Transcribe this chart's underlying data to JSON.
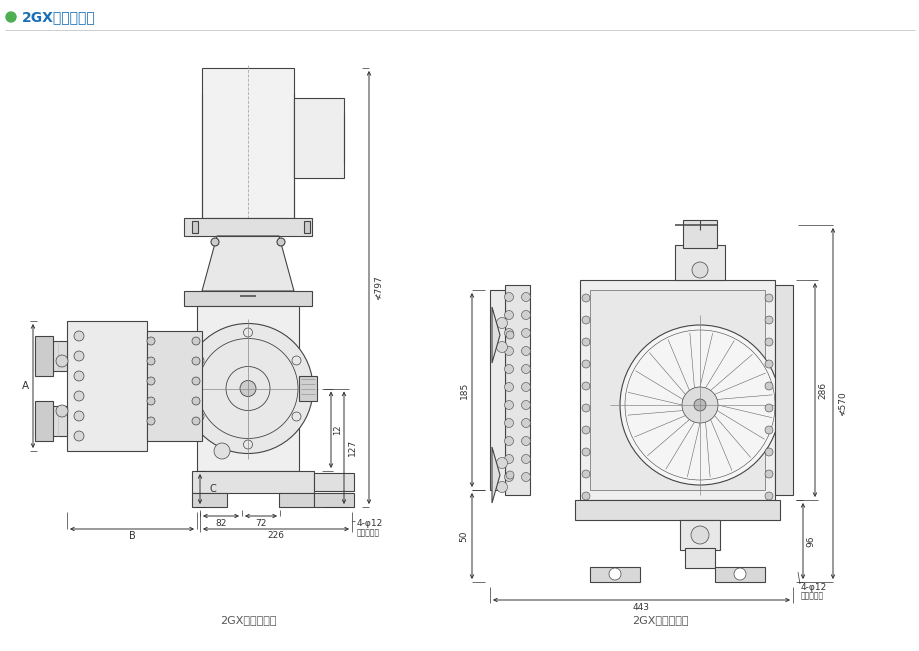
{
  "title": "2GX系列尺寸图",
  "title_color": "#1a6eb5",
  "title_dot_color": "#4caf50",
  "bg_color": "#ffffff",
  "line_color": "#444444",
  "dim_color": "#333333",
  "side_view_label": "2GX系列侧视图",
  "front_view_label": "2GX系列俯视图",
  "dim_797": "≮797",
  "dim_127": "127",
  "dim_12": "12",
  "dim_82": "82",
  "dim_72": "72",
  "dim_226": "226",
  "dim_A": "A",
  "dim_B": "B",
  "dim_C": "C",
  "dim_bolt1": "4-φ12",
  "dim_bolt1_note": "地脚螺栓孔",
  "dim_185": "185",
  "dim_50": "50",
  "dim_443": "443",
  "dim_286": "286",
  "dim_96": "96",
  "dim_570": "≮570",
  "dim_bolt2": "4-φ12",
  "dim_bolt2_note": "地脚螺栓孔"
}
